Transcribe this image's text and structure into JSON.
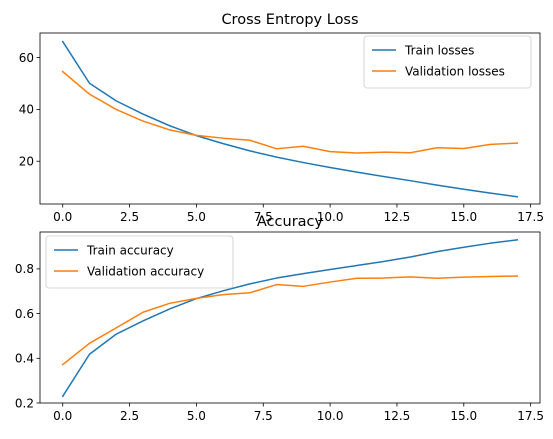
{
  "chart_data": [
    {
      "type": "line",
      "title": "Cross Entropy Loss",
      "xlim": [
        -0.85,
        17.85
      ],
      "ylim": [
        3.5,
        69.5
      ],
      "xticks": [
        0,
        2.5,
        5,
        7.5,
        10,
        12.5,
        15,
        17.5
      ],
      "xtick_labels": [
        "0.0",
        "2.5",
        "5.0",
        "7.5",
        "10.0",
        "12.5",
        "15.0",
        "17.5"
      ],
      "yticks": [
        20,
        40,
        60
      ],
      "ytick_labels": [
        "20",
        "40",
        "60"
      ],
      "legend_position": "upper-right",
      "x": [
        0,
        1,
        2,
        3,
        4,
        5,
        6,
        7,
        8,
        9,
        10,
        11,
        12,
        13,
        14,
        15,
        16,
        17
      ],
      "series": [
        {
          "name": "Train losses",
          "color": "#1f77b4",
          "values": [
            66.2,
            50.1,
            43.3,
            38.2,
            33.7,
            29.9,
            26.8,
            24.0,
            21.6,
            19.5,
            17.6,
            15.8,
            14.1,
            12.5,
            10.8,
            9.2,
            7.7,
            6.3
          ]
        },
        {
          "name": "Validation losses",
          "color": "#ff7f0e",
          "values": [
            54.6,
            45.9,
            40.0,
            35.5,
            32.1,
            30.0,
            28.9,
            28.1,
            24.8,
            25.8,
            23.7,
            23.2,
            23.5,
            23.3,
            25.2,
            24.9,
            26.5,
            27.0
          ]
        }
      ]
    },
    {
      "type": "line",
      "title": "Accuracy",
      "xlim": [
        -0.85,
        17.85
      ],
      "ylim": [
        0.2,
        0.965
      ],
      "xticks": [
        0,
        2.5,
        5,
        7.5,
        10,
        12.5,
        15,
        17.5
      ],
      "xtick_labels": [
        "0.0",
        "2.5",
        "5.0",
        "7.5",
        "10.0",
        "12.5",
        "15.0",
        "17.5"
      ],
      "yticks": [
        0.2,
        0.4,
        0.6,
        0.8
      ],
      "ytick_labels": [
        "0.2",
        "0.4",
        "0.6",
        "0.8"
      ],
      "legend_position": "upper-left",
      "x": [
        0,
        1,
        2,
        3,
        4,
        5,
        6,
        7,
        8,
        9,
        10,
        11,
        12,
        13,
        14,
        15,
        16,
        17
      ],
      "series": [
        {
          "name": "Train accuracy",
          "color": "#1f77b4",
          "values": [
            0.23,
            0.418,
            0.508,
            0.567,
            0.621,
            0.667,
            0.702,
            0.733,
            0.759,
            0.779,
            0.797,
            0.815,
            0.833,
            0.853,
            0.877,
            0.897,
            0.915,
            0.93
          ]
        },
        {
          "name": "Validation accuracy",
          "color": "#ff7f0e",
          "values": [
            0.372,
            0.467,
            0.536,
            0.606,
            0.646,
            0.668,
            0.685,
            0.693,
            0.73,
            0.722,
            0.741,
            0.758,
            0.759,
            0.764,
            0.758,
            0.763,
            0.766,
            0.768
          ]
        }
      ]
    }
  ]
}
